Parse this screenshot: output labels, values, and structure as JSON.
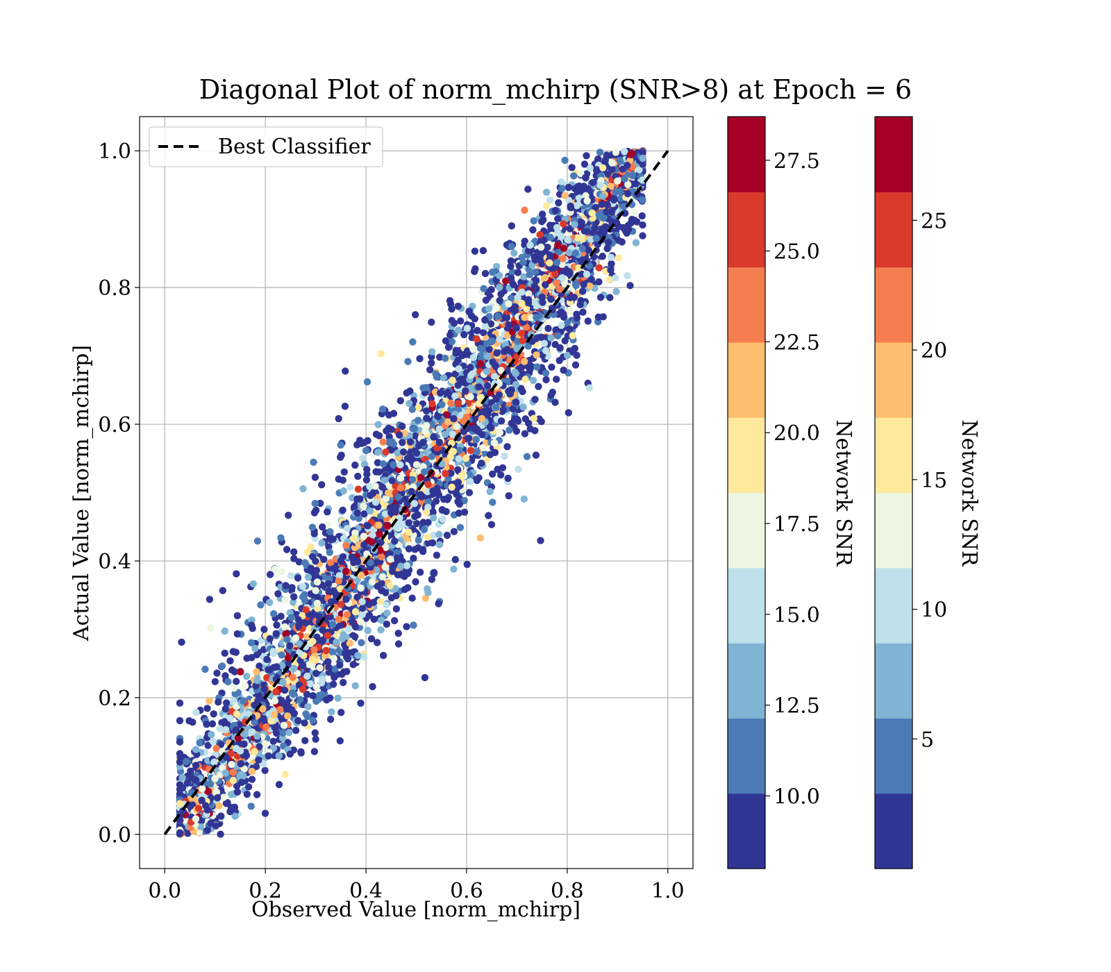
{
  "chart_data": {
    "type": "scatter",
    "title": "Diagonal Plot of norm_mchirp (SNR>8) at Epoch = 6",
    "xlabel": "Observed Value [norm_mchirp]",
    "ylabel": "Actual Value [norm_mchirp]",
    "xlim": [
      -0.05,
      1.05
    ],
    "ylim": [
      -0.05,
      1.05
    ],
    "xticks": [
      "0.0",
      "0.2",
      "0.4",
      "0.6",
      "0.8",
      "1.0"
    ],
    "yticks": [
      "0.0",
      "0.2",
      "0.4",
      "0.6",
      "0.8",
      "1.0"
    ],
    "grid": true,
    "legend": {
      "position": "top-left",
      "entries": [
        "Best Classifier"
      ]
    },
    "reference_line": {
      "name": "Best Classifier",
      "x": [
        0,
        1
      ],
      "y": [
        0,
        1
      ],
      "style": "dashed",
      "color": "#000000"
    },
    "scatter_summary": {
      "approx_points": 5000,
      "x_range": [
        0.03,
        0.95
      ],
      "y_range": [
        0.0,
        1.0
      ],
      "color_by": "Network SNR",
      "trend": "points lie along and slightly below the y = x diagonal, wider spread at low SNR"
    },
    "colormap": [
      "#313695",
      "#4575b4",
      "#74add1",
      "#abd9e9",
      "#e0f3f8",
      "#ffffbf",
      "#fee090",
      "#fdae61",
      "#f46d43",
      "#d73027",
      "#a50026"
    ],
    "colormap_bins": [
      "#313695",
      "#4a7bb7",
      "#80b4d4",
      "#bfe1ec",
      "#edf6e1",
      "#fee99d",
      "#fdbe70",
      "#f57e4e",
      "#da3a2c",
      "#a50026"
    ],
    "colorbars": [
      {
        "label": "Network SNR",
        "range": [
          8,
          28.7
        ],
        "ticks": [
          "10.0",
          "12.5",
          "15.0",
          "17.5",
          "20.0",
          "22.5",
          "25.0",
          "27.5"
        ],
        "tick_values": [
          10,
          12.5,
          15,
          17.5,
          20,
          22.5,
          25,
          27.5
        ]
      },
      {
        "label": "Network SNR",
        "range": [
          0,
          29
        ],
        "ticks": [
          "5",
          "10",
          "15",
          "20",
          "25"
        ],
        "tick_values": [
          5,
          10,
          15,
          20,
          25
        ]
      }
    ]
  }
}
